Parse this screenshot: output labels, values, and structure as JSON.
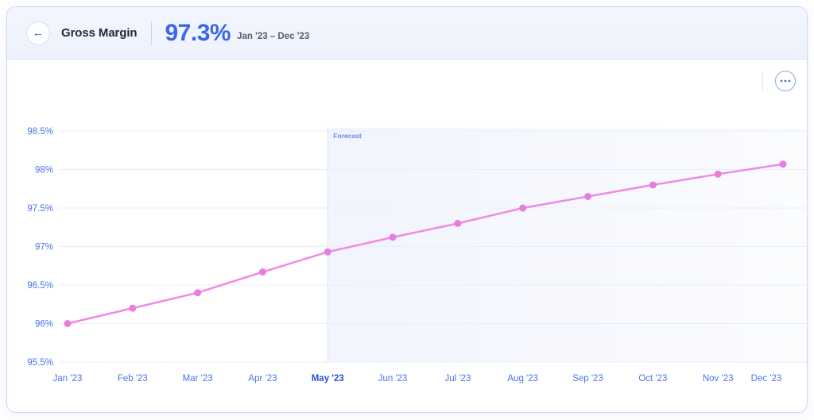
{
  "header": {
    "back_icon": "←",
    "title": "Gross Margin",
    "value": "97.3%",
    "date_range": "Jan '23 – Dec '23"
  },
  "chart_data": {
    "type": "line",
    "title": "Gross Margin",
    "categories": [
      "Jan '23",
      "Feb '23",
      "Mar '23",
      "Apr '23",
      "May '23",
      "Jun '23",
      "Jul '23",
      "Aug '23",
      "Sep '23",
      "Oct '23",
      "Nov '23",
      "Dec '23"
    ],
    "series": [
      {
        "name": "Gross Margin",
        "values": [
          96.0,
          96.2,
          96.4,
          96.67,
          96.93,
          97.12,
          97.3,
          97.5,
          97.65,
          97.8,
          97.94,
          98.07
        ]
      }
    ],
    "unit": "%",
    "ylim": [
      95.5,
      98.5
    ],
    "yticks": [
      98.5,
      98,
      97.5,
      97,
      96.5,
      96,
      95.5
    ],
    "ytick_labels": [
      "98.5%",
      "98%",
      "97.5%",
      "97%",
      "96.5%",
      "96%",
      "95.5%"
    ],
    "grid": "horizontal",
    "legend": "none",
    "forecast": {
      "label": "Forecast",
      "start_category": "May '23"
    },
    "colors": {
      "line": "#ee8ae4",
      "point": "#e87de0",
      "axis_labels": "#4b74e8",
      "active_tick": "#2c50d6",
      "gridline": "#e9eef8",
      "forecast_fill": "#7c94f0",
      "forecast_border": "#dce4f7",
      "forecast_label": "#6b86e6"
    }
  }
}
